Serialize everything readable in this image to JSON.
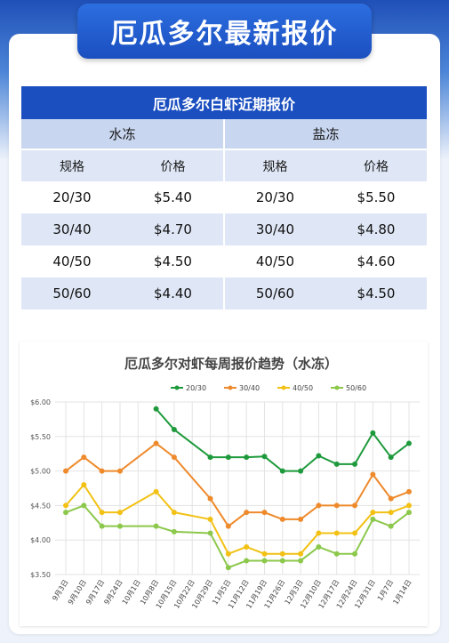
{
  "banner_title": "厄瓜多尔最新报价",
  "table": {
    "title": "厄瓜多尔白虾近期报价",
    "groups": [
      "水冻",
      "盐冻"
    ],
    "headers": [
      "规格",
      "价格",
      "规格",
      "价格"
    ],
    "rows": [
      [
        "20/30",
        "$5.40",
        "20/30",
        "$5.50"
      ],
      [
        "30/40",
        "$4.70",
        "30/40",
        "$4.80"
      ],
      [
        "40/50",
        "$4.50",
        "40/50",
        "$4.60"
      ],
      [
        "50/60",
        "$4.40",
        "50/60",
        "$4.50"
      ]
    ]
  },
  "chart_data": {
    "type": "line",
    "title": "厄瓜多尔对虾每周报价趋势（水冻）",
    "legend_position": "top-right",
    "grid": true,
    "ylim": [
      3.5,
      6.0
    ],
    "yticks": [
      "$3.50",
      "$4.00",
      "$4.50",
      "$5.00",
      "$5.50",
      "$6.00"
    ],
    "ytick_values": [
      3.5,
      4.0,
      4.5,
      5.0,
      5.5,
      6.0
    ],
    "x": [
      "9月3日",
      "9月10日",
      "9月17日",
      "9月24日",
      "10月1日",
      "10月8日",
      "10月15日",
      "10月22日",
      "10月29日",
      "11月5日",
      "11月12日",
      "11月19日",
      "11月26日",
      "12月3日",
      "12月10日",
      "12月17日",
      "12月24日",
      "12月31日",
      "1月7日",
      "1月14日"
    ],
    "xticks": [
      "9月3日",
      "9月10日",
      "9月17日",
      "9月24日",
      "10月1日",
      "10月8日",
      "10月15日",
      "10月22日",
      "10月29日",
      "11月5日",
      "11月12日",
      "11月19日",
      "11月26日",
      "12月3日",
      "12月10日",
      "12月17日",
      "12月24日",
      "12月31日",
      "1月7日",
      "1月14日"
    ],
    "series": [
      {
        "name": "20/30",
        "color": "#1e9a3c",
        "values": [
          null,
          null,
          null,
          null,
          null,
          5.9,
          5.6,
          null,
          5.2,
          5.2,
          5.2,
          5.21,
          5.0,
          5.0,
          5.22,
          5.1,
          5.1,
          5.55,
          5.2,
          5.4
        ]
      },
      {
        "name": "30/40",
        "color": "#ee8a2c",
        "values": [
          5.0,
          5.2,
          5.0,
          5.0,
          null,
          5.4,
          5.2,
          null,
          4.6,
          4.2,
          4.4,
          4.4,
          4.3,
          4.3,
          4.5,
          4.5,
          4.5,
          4.95,
          4.6,
          4.7
        ]
      },
      {
        "name": "40/50",
        "color": "#f2c114",
        "values": [
          4.5,
          4.8,
          4.4,
          4.4,
          null,
          4.7,
          4.4,
          null,
          4.3,
          3.8,
          3.9,
          3.8,
          3.8,
          3.8,
          4.1,
          4.1,
          4.1,
          4.4,
          4.4,
          4.5
        ]
      },
      {
        "name": "50/60",
        "color": "#8cc84b",
        "values": [
          4.4,
          4.5,
          4.2,
          4.2,
          null,
          4.2,
          4.12,
          null,
          4.1,
          3.6,
          3.7,
          3.7,
          3.7,
          3.7,
          3.9,
          3.8,
          3.8,
          4.3,
          4.2,
          4.4
        ]
      }
    ]
  }
}
